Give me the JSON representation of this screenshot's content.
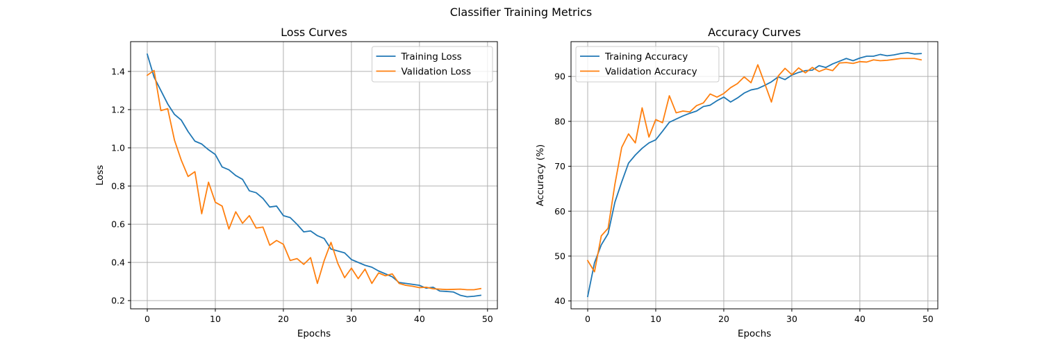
{
  "figure": {
    "suptitle": "Classifier Training Metrics"
  },
  "chart_data": [
    {
      "type": "line",
      "title": "Loss Curves",
      "xlabel": "Epochs",
      "ylabel": "Loss",
      "xlim": [
        -2.45,
        51.45
      ],
      "ylim": [
        0.157,
        1.556
      ],
      "xticks": [
        0,
        10,
        20,
        30,
        40,
        50
      ],
      "yticks": [
        0.2,
        0.4,
        0.6,
        0.8,
        1.0,
        1.2,
        1.4
      ],
      "ytick_decimals": 1,
      "grid": true,
      "legend_position": "upper right",
      "x": [
        0,
        1,
        2,
        3,
        4,
        5,
        6,
        7,
        8,
        9,
        10,
        11,
        12,
        13,
        14,
        15,
        16,
        17,
        18,
        19,
        20,
        21,
        22,
        23,
        24,
        25,
        26,
        27,
        28,
        29,
        30,
        31,
        32,
        33,
        34,
        35,
        36,
        37,
        38,
        39,
        40,
        41,
        42,
        43,
        44,
        45,
        46,
        47,
        48,
        49
      ],
      "series": [
        {
          "name": "Training Loss",
          "color": "#1f77b4",
          "values": [
            1.49,
            1.37,
            1.3,
            1.23,
            1.175,
            1.145,
            1.085,
            1.035,
            1.02,
            0.99,
            0.965,
            0.9,
            0.885,
            0.855,
            0.835,
            0.775,
            0.765,
            0.735,
            0.69,
            0.695,
            0.645,
            0.635,
            0.6,
            0.56,
            0.565,
            0.54,
            0.525,
            0.47,
            0.46,
            0.45,
            0.415,
            0.4,
            0.385,
            0.375,
            0.355,
            0.34,
            0.325,
            0.295,
            0.29,
            0.285,
            0.28,
            0.265,
            0.27,
            0.25,
            0.248,
            0.245,
            0.228,
            0.22,
            0.223,
            0.228
          ]
        },
        {
          "name": "Validation Loss",
          "color": "#ff7f0e",
          "values": [
            1.38,
            1.405,
            1.195,
            1.205,
            1.04,
            0.935,
            0.85,
            0.875,
            0.655,
            0.82,
            0.715,
            0.695,
            0.575,
            0.665,
            0.605,
            0.645,
            0.58,
            0.585,
            0.49,
            0.515,
            0.495,
            0.41,
            0.42,
            0.39,
            0.425,
            0.29,
            0.41,
            0.505,
            0.395,
            0.32,
            0.37,
            0.315,
            0.365,
            0.29,
            0.345,
            0.33,
            0.34,
            0.29,
            0.28,
            0.275,
            0.268,
            0.27,
            0.262,
            0.26,
            0.258,
            0.259,
            0.26,
            0.257,
            0.257,
            0.263
          ]
        }
      ]
    },
    {
      "type": "line",
      "title": "Accuracy Curves",
      "xlabel": "Epochs",
      "ylabel": "Accuracy (%)",
      "xlim": [
        -2.45,
        51.45
      ],
      "ylim": [
        38.25,
        97.75
      ],
      "xticks": [
        0,
        10,
        20,
        30,
        40,
        50
      ],
      "yticks": [
        40,
        50,
        60,
        70,
        80,
        90
      ],
      "ytick_decimals": 0,
      "grid": true,
      "legend_position": "upper left",
      "x": [
        0,
        1,
        2,
        3,
        4,
        5,
        6,
        7,
        8,
        9,
        10,
        11,
        12,
        13,
        14,
        15,
        16,
        17,
        18,
        19,
        20,
        21,
        22,
        23,
        24,
        25,
        26,
        27,
        28,
        29,
        30,
        31,
        32,
        33,
        34,
        35,
        36,
        37,
        38,
        39,
        40,
        41,
        42,
        43,
        44,
        45,
        46,
        47,
        48,
        49
      ],
      "series": [
        {
          "name": "Training Accuracy",
          "color": "#1f77b4",
          "values": [
            41.0,
            48.5,
            52.5,
            55.0,
            62.0,
            66.5,
            70.7,
            72.5,
            74.0,
            75.2,
            75.9,
            77.8,
            79.8,
            80.5,
            81.2,
            81.8,
            82.3,
            83.3,
            83.6,
            84.6,
            85.4,
            84.3,
            85.2,
            86.3,
            87.0,
            87.3,
            88.0,
            88.8,
            89.9,
            89.3,
            90.3,
            90.9,
            91.3,
            91.4,
            92.4,
            92.0,
            92.8,
            93.4,
            94.0,
            93.5,
            94.1,
            94.5,
            94.5,
            94.9,
            94.6,
            94.8,
            95.1,
            95.3,
            95.0,
            95.1
          ]
        },
        {
          "name": "Validation Accuracy",
          "color": "#ff7f0e",
          "values": [
            49.0,
            46.5,
            54.5,
            56.2,
            66.0,
            74.2,
            77.2,
            75.2,
            83.0,
            76.5,
            80.4,
            79.7,
            85.7,
            81.9,
            82.3,
            82.1,
            83.5,
            84.1,
            86.1,
            85.4,
            86.2,
            87.5,
            88.4,
            89.9,
            88.6,
            92.6,
            88.5,
            84.3,
            90.1,
            91.8,
            90.4,
            91.9,
            90.8,
            92.0,
            91.1,
            91.7,
            91.3,
            93.0,
            93.1,
            92.9,
            93.3,
            93.2,
            93.7,
            93.5,
            93.6,
            93.8,
            94.0,
            94.0,
            94.0,
            93.7
          ]
        }
      ]
    }
  ]
}
